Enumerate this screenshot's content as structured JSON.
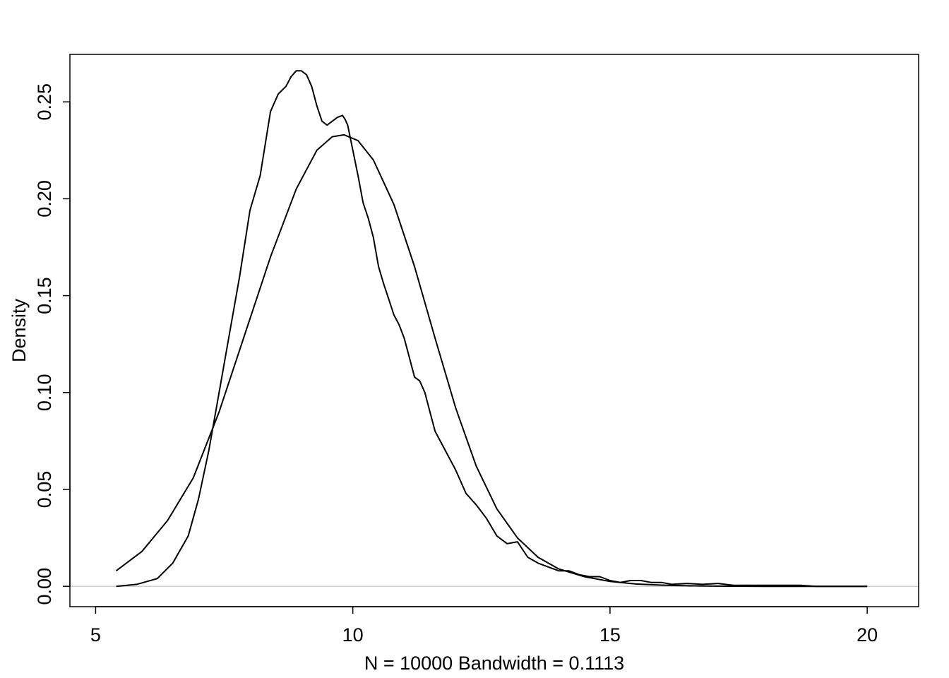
{
  "chart_data": {
    "type": "line",
    "title": "",
    "xlabel": "N = 10000   Bandwidth = 0.1113",
    "ylabel": "Density",
    "xlim": [
      4.5,
      21.0
    ],
    "ylim": [
      -0.0105,
      0.2745
    ],
    "x_ticks": [
      5,
      10,
      15,
      20
    ],
    "x_tick_labels": [
      "5",
      "10",
      "15",
      "20"
    ],
    "y_ticks": [
      0.0,
      0.05,
      0.1,
      0.15,
      0.2,
      0.25
    ],
    "y_tick_labels": [
      "0.00",
      "0.05",
      "0.10",
      "0.15",
      "0.20",
      "0.25"
    ],
    "grid": false,
    "legend": "none",
    "colors": {
      "line": "#000000",
      "zero_line": "#bebebe",
      "frame": "#000000"
    },
    "series": [
      {
        "x": [
          5.4,
          5.8,
          6.2,
          6.5,
          6.8,
          7.0,
          7.2,
          7.4,
          7.6,
          7.8,
          8.0,
          8.2,
          8.4,
          8.55,
          8.7,
          8.8,
          8.9,
          9.0,
          9.1,
          9.2,
          9.3,
          9.4,
          9.5,
          9.6,
          9.7,
          9.8,
          9.85,
          9.9,
          10.0,
          10.1,
          10.2,
          10.3,
          10.4,
          10.5,
          10.6,
          10.7,
          10.8,
          10.9,
          11.0,
          11.1,
          11.2,
          11.3,
          11.4,
          11.5,
          11.6,
          11.7,
          11.8,
          11.9,
          12.0,
          12.2,
          12.4,
          12.6,
          12.8,
          13.0,
          13.2,
          13.4,
          13.6,
          13.8,
          14.0,
          14.2,
          14.4,
          14.6,
          14.8,
          15.0,
          15.2,
          15.4,
          15.6,
          15.8,
          16.0,
          16.2,
          16.5,
          16.8,
          17.1,
          17.4,
          17.7,
          18.0,
          18.3,
          18.7,
          19.0,
          19.5,
          20.0
        ],
        "y": [
          0.0,
          0.001,
          0.004,
          0.012,
          0.026,
          0.045,
          0.07,
          0.1,
          0.13,
          0.16,
          0.194,
          0.212,
          0.245,
          0.254,
          0.258,
          0.263,
          0.266,
          0.266,
          0.264,
          0.258,
          0.248,
          0.24,
          0.238,
          0.24,
          0.242,
          0.243,
          0.241,
          0.238,
          0.225,
          0.212,
          0.198,
          0.19,
          0.18,
          0.165,
          0.156,
          0.148,
          0.14,
          0.135,
          0.128,
          0.118,
          0.108,
          0.106,
          0.1,
          0.09,
          0.08,
          0.075,
          0.07,
          0.065,
          0.06,
          0.048,
          0.042,
          0.035,
          0.026,
          0.022,
          0.023,
          0.015,
          0.012,
          0.01,
          0.008,
          0.008,
          0.006,
          0.005,
          0.005,
          0.003,
          0.002,
          0.003,
          0.003,
          0.002,
          0.002,
          0.001,
          0.0015,
          0.001,
          0.0015,
          0.0005,
          0.0005,
          0.0005,
          0.0005,
          0.0005,
          0.0,
          0.0,
          0.0
        ]
      },
      {
        "x": [
          5.4,
          5.9,
          6.4,
          6.9,
          7.4,
          7.9,
          8.4,
          8.9,
          9.3,
          9.6,
          9.83,
          10.1,
          10.4,
          10.8,
          11.2,
          11.6,
          12.0,
          12.4,
          12.8,
          13.2,
          13.6,
          14.0,
          14.5,
          15.0,
          15.5,
          16.0,
          16.5,
          17.0,
          18.0,
          19.0,
          20.0
        ],
        "y": [
          0.008,
          0.018,
          0.034,
          0.056,
          0.09,
          0.13,
          0.17,
          0.205,
          0.225,
          0.232,
          0.233,
          0.23,
          0.22,
          0.197,
          0.165,
          0.128,
          0.092,
          0.062,
          0.04,
          0.025,
          0.015,
          0.009,
          0.005,
          0.0025,
          0.0012,
          0.0006,
          0.0003,
          0.0001,
          0.0,
          0.0,
          0.0
        ]
      }
    ]
  }
}
